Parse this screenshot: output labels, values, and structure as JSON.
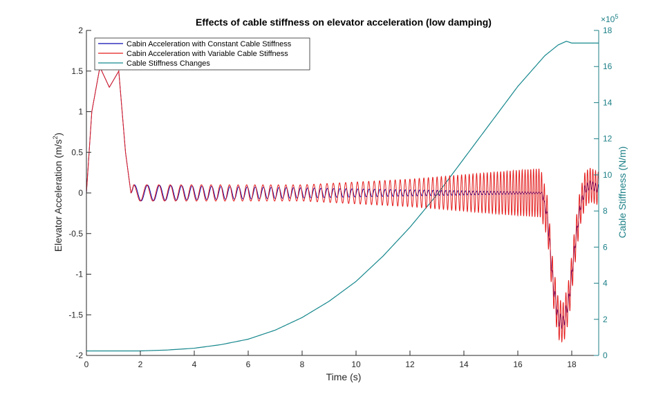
{
  "chart_data": {
    "type": "line",
    "title": "Effects of cable stiffness on elevator acceleration (low damping)",
    "xlabel": "Time (s)",
    "ylabel_left_main": "Elevator Acceleration (m/s",
    "ylabel_left_sup": "2",
    "ylabel_left_end": ")",
    "ylabel_right": "Cable Stiffness (N/m)",
    "right_exponent_base": "×10",
    "right_exponent_power": "5",
    "xlim": [
      0,
      19
    ],
    "ylim_left": [
      -2,
      2
    ],
    "ylim_right": [
      0,
      18
    ],
    "x_ticks": [
      0,
      2,
      4,
      6,
      8,
      10,
      12,
      14,
      16,
      18
    ],
    "y_ticks_left": [
      -2,
      -1.5,
      -1,
      -0.5,
      0,
      0.5,
      1,
      1.5,
      2
    ],
    "y_ticks_right": [
      0,
      2,
      4,
      6,
      8,
      10,
      12,
      14,
      16,
      18
    ],
    "legend_location": "top-left",
    "series": [
      {
        "name": "Cabin Acceleration with Constant Cable Stiffness",
        "axis": "left",
        "color": "#0b0bb0",
        "envelope": {
          "t": [
            0,
            0.2,
            0.5,
            0.85,
            1.2,
            1.45,
            1.65,
            1.75,
            16.9,
            17.1,
            17.3,
            17.5,
            17.7,
            17.9,
            18.1,
            18.3,
            18.5,
            18.7,
            19.0
          ],
          "mean": [
            0,
            1.0,
            1.55,
            1.3,
            1.5,
            0.5,
            0,
            0,
            0,
            -0.3,
            -1.1,
            -1.55,
            -1.6,
            -1.3,
            -0.7,
            -0.2,
            0.05,
            0.1,
            0.05
          ],
          "amp": [
            0,
            0,
            0,
            0,
            0,
            0,
            0,
            0.1,
            0.008,
            0.05,
            0.08,
            0.08,
            0.08,
            0.07,
            0.06,
            0.05,
            0.05,
            0.05,
            0.05
          ]
        },
        "osc_period_s": [
          0.55,
          0.1
        ]
      },
      {
        "name": "Cabin Acceleration with Variable Cable Stiffness",
        "axis": "left",
        "color": "#e41b1b",
        "envelope": {
          "t": [
            0,
            0.2,
            0.5,
            0.85,
            1.2,
            1.45,
            1.65,
            1.75,
            4,
            8,
            12,
            16,
            16.85,
            17.1,
            17.3,
            17.5,
            17.7,
            17.9,
            18.1,
            18.3,
            18.5,
            18.7,
            19.0
          ],
          "mean": [
            0,
            1.0,
            1.55,
            1.3,
            1.5,
            0.5,
            0,
            0,
            0,
            0,
            0,
            0,
            0,
            -0.3,
            -1.1,
            -1.55,
            -1.6,
            -1.3,
            -0.7,
            -0.2,
            0.05,
            0.1,
            0.05
          ],
          "amp": [
            0,
            0,
            0,
            0,
            0,
            0,
            0,
            0.1,
            0.1,
            0.1,
            0.17,
            0.28,
            0.3,
            0.25,
            0.25,
            0.25,
            0.25,
            0.25,
            0.23,
            0.22,
            0.22,
            0.21,
            0.2
          ]
        },
        "osc_period_s": [
          0.55,
          0.1
        ]
      },
      {
        "name": "Cable Stiffness Changes",
        "axis": "right",
        "color": "#14868c",
        "x": [
          0,
          1,
          2,
          3,
          4,
          5,
          6,
          7,
          8,
          9,
          10,
          11,
          12,
          13,
          14,
          15,
          16,
          17,
          17.5,
          17.8,
          18,
          19
        ],
        "y": [
          0.25,
          0.25,
          0.25,
          0.3,
          0.4,
          0.6,
          0.9,
          1.4,
          2.1,
          3.0,
          4.1,
          5.5,
          7.1,
          8.9,
          10.9,
          12.9,
          14.9,
          16.6,
          17.2,
          17.4,
          17.3,
          17.3
        ]
      }
    ]
  }
}
